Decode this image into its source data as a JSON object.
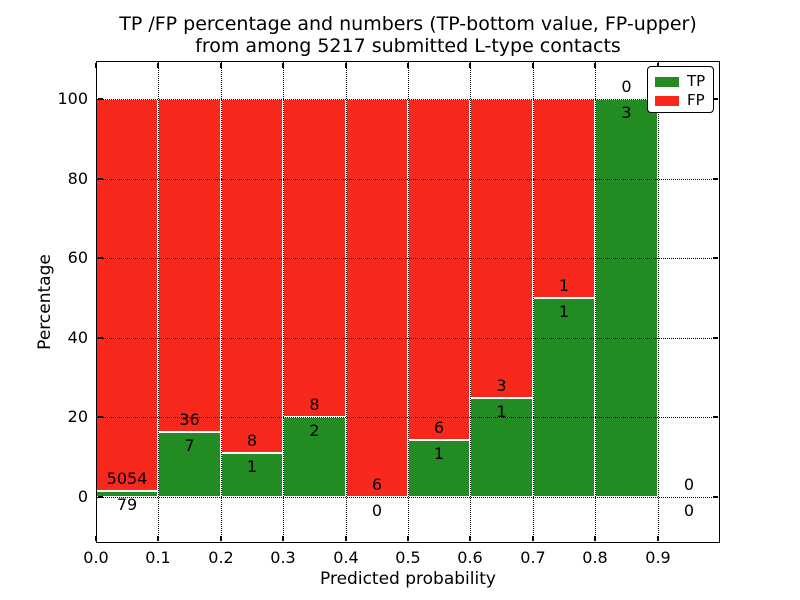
{
  "chart_data": {
    "type": "bar",
    "stacked": true,
    "title": "TP /FP percentage and numbers (TP-bottom value, FP-upper) from among 5217 submitted L-type contacts",
    "title_lines": [
      "TP /FP percentage and numbers (TP-bottom value, FP-upper)",
      "from among 5217 submitted L-type contacts"
    ],
    "xlabel": "Predicted probability",
    "ylabel": "Percentage",
    "total_submitted_contacts": 5217,
    "categories": [
      "0.0-0.1",
      "0.1-0.2",
      "0.2-0.3",
      "0.3-0.4",
      "0.4-0.5",
      "0.5-0.6",
      "0.6-0.7",
      "0.7-0.8",
      "0.8-0.9",
      "0.9-1.0"
    ],
    "x_tick_labels": [
      "0.0",
      "0.1",
      "0.2",
      "0.3",
      "0.4",
      "0.5",
      "0.6",
      "0.7",
      "0.8",
      "0.9"
    ],
    "y_ticks": [
      0,
      20,
      40,
      60,
      80,
      100
    ],
    "xlim": [
      0.0,
      1.0
    ],
    "ylim": [
      -11.5,
      109.5
    ],
    "grid": true,
    "grid_style": "dotted",
    "legend_position": "upper right",
    "bar_semantics": "green TP segment from 0 to TP/(TP+FP)*100 percent, red FP segment stacked above to 100 percent; FP count printed above the TP/FP boundary, TP count printed below it",
    "series": [
      {
        "name": "TP",
        "color": "#228b22",
        "counts": [
          79,
          7,
          1,
          2,
          0,
          1,
          1,
          1,
          3,
          0
        ]
      },
      {
        "name": "FP",
        "color": "#f9281c",
        "counts": [
          5054,
          36,
          8,
          8,
          6,
          6,
          3,
          1,
          0,
          0
        ]
      }
    ],
    "tp_percent_by_bin": [
      1.54,
      16.28,
      11.11,
      20.0,
      0.0,
      14.29,
      25.0,
      50.0,
      100.0,
      null
    ]
  }
}
